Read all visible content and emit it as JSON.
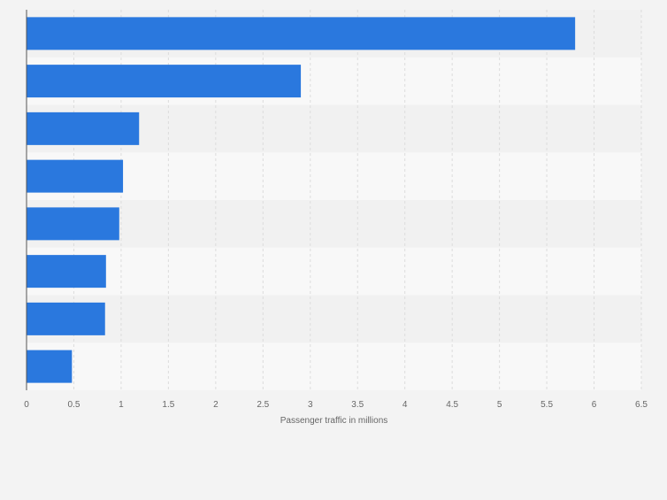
{
  "chart_data": {
    "type": "bar",
    "orientation": "horizontal",
    "categories": [
      "",
      "",
      "",
      "",
      "",
      "",
      "",
      ""
    ],
    "values": [
      5.8,
      2.9,
      1.19,
      1.02,
      0.98,
      0.84,
      0.83,
      0.48
    ],
    "xlabel": "Passenger traffic in millions",
    "ylabel": "",
    "xlim": [
      0,
      6.5
    ],
    "xticks": [
      "0",
      "0.5",
      "1",
      "1.5",
      "2",
      "2.5",
      "3",
      "3.5",
      "4",
      "4.5",
      "5",
      "5.5",
      "6",
      "6.5"
    ],
    "grid": true,
    "bar_color": "#2a78de",
    "band_colors": [
      "#f1f1f1",
      "#f8f8f8"
    ],
    "background_color": "#f3f3f3"
  }
}
